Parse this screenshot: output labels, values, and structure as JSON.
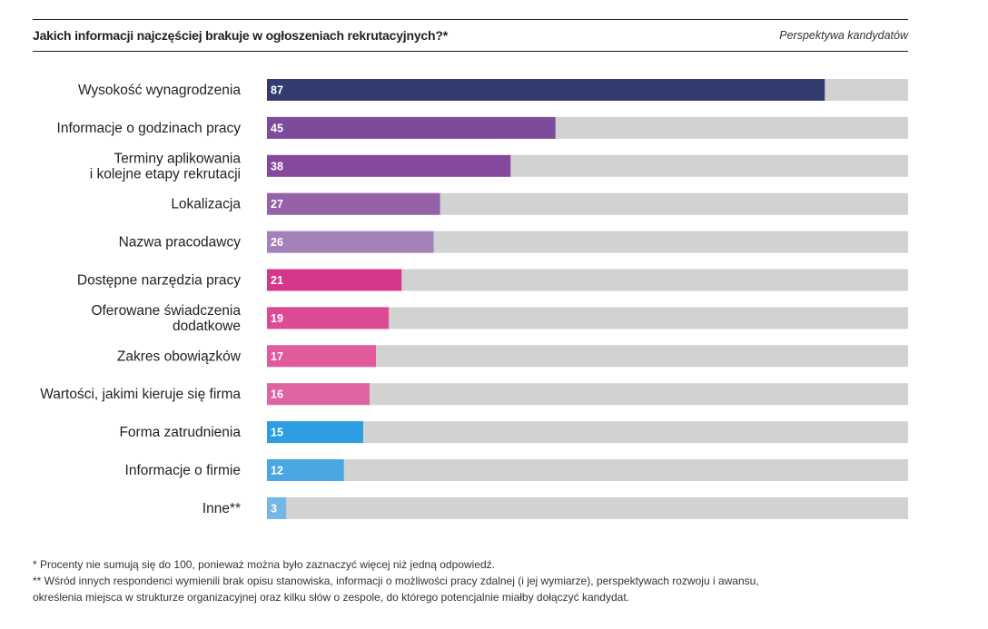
{
  "header": {
    "title": "Jakich informacji najczęściej brakuje w ogłoszeniach rekrutacyjnych?*",
    "perspective": "Perspektywa kandydatów"
  },
  "chart_data": {
    "type": "bar",
    "orientation": "horizontal",
    "title": "Jakich informacji najczęściej brakuje w ogłoszeniach rekrutacyjnych?*",
    "subtitle": "Perspektywa kandydatów",
    "xlim": [
      0,
      100
    ],
    "background_track": true,
    "categories": [
      [
        "Wysokość wynagrodzenia"
      ],
      [
        "Informacje o godzinach pracy"
      ],
      [
        "Terminy aplikowania",
        "i kolejne etapy rekrutacji"
      ],
      [
        "Lokalizacja"
      ],
      [
        "Nazwa pracodawcy"
      ],
      [
        "Dostępne narzędzia pracy"
      ],
      [
        "Oferowane świadczenia",
        "dodatkowe"
      ],
      [
        "Zakres obowiązków"
      ],
      [
        "Wartości, jakimi kieruje się firma"
      ],
      [
        "Forma zatrudnienia"
      ],
      [
        "Informacje o firmie"
      ],
      [
        "Inne**"
      ]
    ],
    "values": [
      87,
      45,
      38,
      27,
      26,
      21,
      19,
      17,
      16,
      15,
      12,
      3
    ],
    "colors": [
      "#323c6e",
      "#7e4b9a",
      "#86489c",
      "#9561a7",
      "#a382ba",
      "#d6378b",
      "#dc4a93",
      "#e05a9c",
      "#e064a1",
      "#2b9de0",
      "#4ba7e1",
      "#72b7e6"
    ],
    "track_color": "#d2d2d3"
  },
  "footnotes": {
    "note1": "* Procenty nie sumują się do 100, ponieważ można było zaznaczyć więcej niż jedną odpowiedź.",
    "note2_line1": "** Wśród innych respondenci wymienili brak opisu stanowiska, informacji o możliwości pracy zdalnej (i jej wymiarze), perspektywach rozwoju i awansu,",
    "note2_line2": "określenia miejsca w strukturze organizacyjnej oraz kilku słów o zespole, do którego potencjalnie miałby dołączyć kandydat."
  }
}
